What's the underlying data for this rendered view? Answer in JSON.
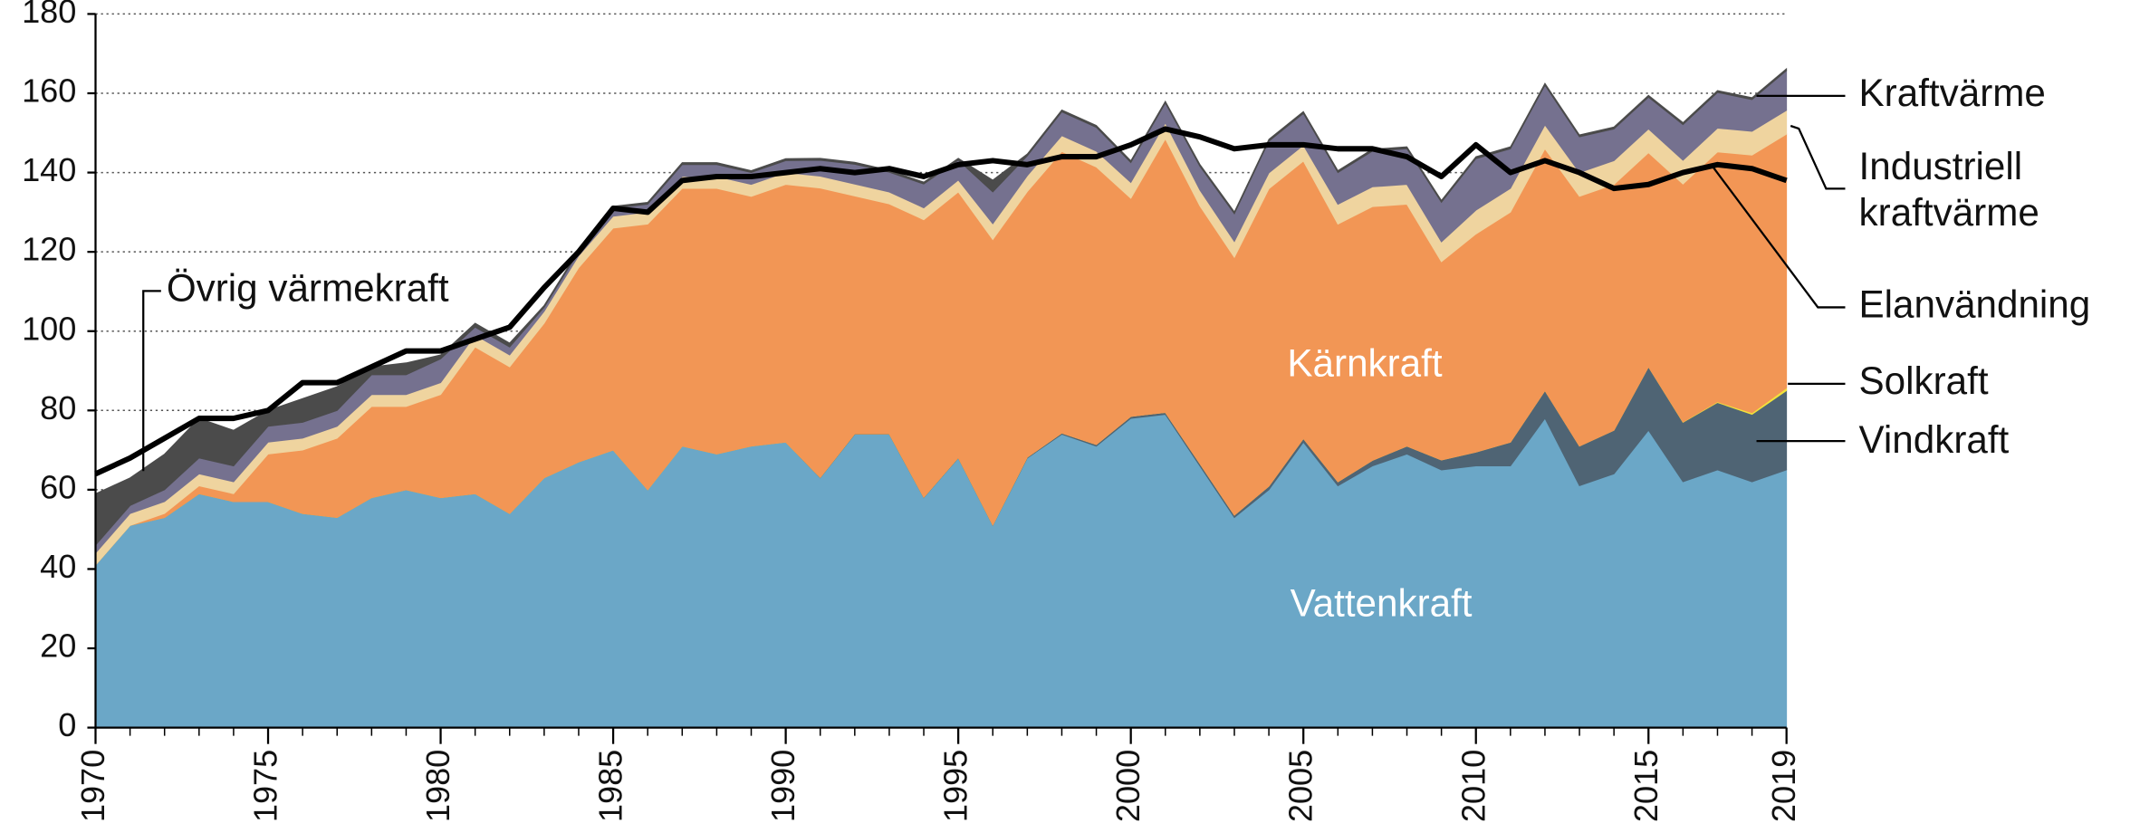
{
  "chart_data": {
    "type": "area",
    "x": [
      1970,
      1971,
      1972,
      1973,
      1974,
      1975,
      1976,
      1977,
      1978,
      1979,
      1980,
      1981,
      1982,
      1983,
      1984,
      1985,
      1986,
      1987,
      1988,
      1989,
      1990,
      1991,
      1992,
      1993,
      1994,
      1995,
      1996,
      1997,
      1998,
      1999,
      2000,
      2001,
      2002,
      2003,
      2004,
      2005,
      2006,
      2007,
      2008,
      2009,
      2010,
      2011,
      2012,
      2013,
      2014,
      2015,
      2016,
      2017,
      2018,
      2019
    ],
    "xlim": [
      1970,
      2019
    ],
    "xticks": [
      1970,
      1975,
      1980,
      1985,
      1990,
      1995,
      2000,
      2005,
      2010,
      2015,
      2019
    ],
    "ylim": [
      0,
      180
    ],
    "yticks": [
      0,
      20,
      40,
      60,
      80,
      100,
      120,
      140,
      160,
      180
    ],
    "grid": true,
    "series": [
      {
        "name": "Vattenkraft",
        "color": "#6ba7c7",
        "values": [
          41,
          51,
          53,
          59,
          57,
          57,
          54,
          53,
          58,
          60,
          58,
          59,
          54,
          63,
          67,
          70,
          60,
          71,
          69,
          71,
          72,
          63,
          74,
          74,
          58,
          68,
          51,
          68,
          74,
          71,
          78,
          79,
          66,
          53,
          60,
          72,
          61,
          66,
          69,
          65,
          66,
          66,
          78,
          61,
          64,
          75,
          62,
          65,
          62,
          65
        ]
      },
      {
        "name": "Vindkraft",
        "color": "#4f6474",
        "values": [
          0,
          0,
          0,
          0,
          0,
          0,
          0,
          0,
          0,
          0,
          0,
          0,
          0,
          0,
          0,
          0,
          0,
          0,
          0,
          0,
          0,
          0.1,
          0.1,
          0.1,
          0.1,
          0.1,
          0.1,
          0.2,
          0.3,
          0.4,
          0.5,
          0.5,
          0.6,
          0.6,
          0.9,
          0.9,
          1,
          1.4,
          2,
          2.5,
          3.5,
          6,
          7,
          10,
          11,
          16,
          15,
          17,
          17,
          20
        ]
      },
      {
        "name": "Solkraft",
        "color": "#f2e33a",
        "values": [
          0,
          0,
          0,
          0,
          0,
          0,
          0,
          0,
          0,
          0,
          0,
          0,
          0,
          0,
          0,
          0,
          0,
          0,
          0,
          0,
          0,
          0,
          0,
          0,
          0,
          0,
          0,
          0,
          0,
          0,
          0,
          0,
          0,
          0,
          0,
          0,
          0,
          0,
          0,
          0,
          0,
          0,
          0,
          0,
          0,
          0,
          0.1,
          0.2,
          0.4,
          0.7
        ]
      },
      {
        "name": "Kärnkraft",
        "color": "#f29655",
        "values": [
          0,
          0,
          1,
          2,
          2,
          12,
          16,
          20,
          23,
          21,
          26,
          37,
          37,
          39,
          49,
          56,
          67,
          65,
          67,
          63,
          65,
          73,
          60,
          58,
          70,
          67,
          72,
          67,
          71,
          70,
          55,
          69,
          65,
          65,
          75,
          70,
          65,
          64,
          61,
          50,
          55,
          58,
          61,
          63,
          62,
          54,
          60,
          63,
          65,
          64
        ]
      },
      {
        "name": "Industriell kraftvärme",
        "color": "#efd49f",
        "values": [
          3,
          3,
          3,
          3,
          3,
          3,
          3,
          3,
          3,
          3,
          3,
          3,
          3,
          3,
          3,
          3,
          3,
          3,
          3,
          3,
          3,
          3,
          3,
          3,
          3,
          3,
          4,
          4,
          4,
          4,
          4,
          4,
          4,
          4,
          4,
          4,
          5,
          5,
          5,
          5,
          6,
          6,
          6,
          6,
          6,
          6,
          6,
          6,
          6,
          6
        ]
      },
      {
        "name": "Kraftvärme",
        "color": "#75718f",
        "values": [
          2,
          2,
          3,
          4,
          4,
          4,
          4,
          4,
          5,
          5,
          6,
          2,
          2,
          1,
          1,
          2,
          2,
          3,
          3,
          3,
          3,
          4,
          5,
          5,
          6,
          5,
          8,
          5,
          6,
          6,
          5,
          5,
          6,
          7,
          8,
          8,
          8,
          9,
          9,
          10,
          13,
          10,
          10,
          9,
          8,
          8,
          9,
          9,
          8,
          10
        ]
      },
      {
        "name": "Övrig värmekraft",
        "color": "#4b4b4b",
        "values": [
          13,
          7,
          9,
          10,
          9,
          4,
          6,
          6,
          2,
          3,
          1,
          1,
          1,
          0.5,
          0.5,
          0.5,
          0.5,
          0.5,
          0.5,
          0.5,
          0.5,
          0.5,
          0.5,
          0.5,
          0.5,
          0.5,
          3,
          0.5,
          0.5,
          0.5,
          0.5,
          0.5,
          0.5,
          0.5,
          0.5,
          0.5,
          0.5,
          0.5,
          0.5,
          0.5,
          0.5,
          0.5,
          0.5,
          0.5,
          0.5,
          0.5,
          0.5,
          0.5,
          0.5,
          0.5
        ]
      },
      {
        "name": "Elanvändning",
        "type": "line",
        "color": "#000000",
        "values": [
          64,
          68,
          73,
          78,
          78,
          80,
          87,
          87,
          91,
          95,
          95,
          98,
          101,
          111,
          120,
          131,
          130,
          138,
          139,
          139,
          140,
          141,
          140,
          141,
          139,
          142,
          143,
          142,
          144,
          144,
          147,
          151,
          149,
          146,
          147,
          147,
          146,
          146,
          144,
          139,
          147,
          140,
          143,
          140,
          136,
          137,
          140,
          142,
          141,
          138
        ]
      }
    ]
  }
}
